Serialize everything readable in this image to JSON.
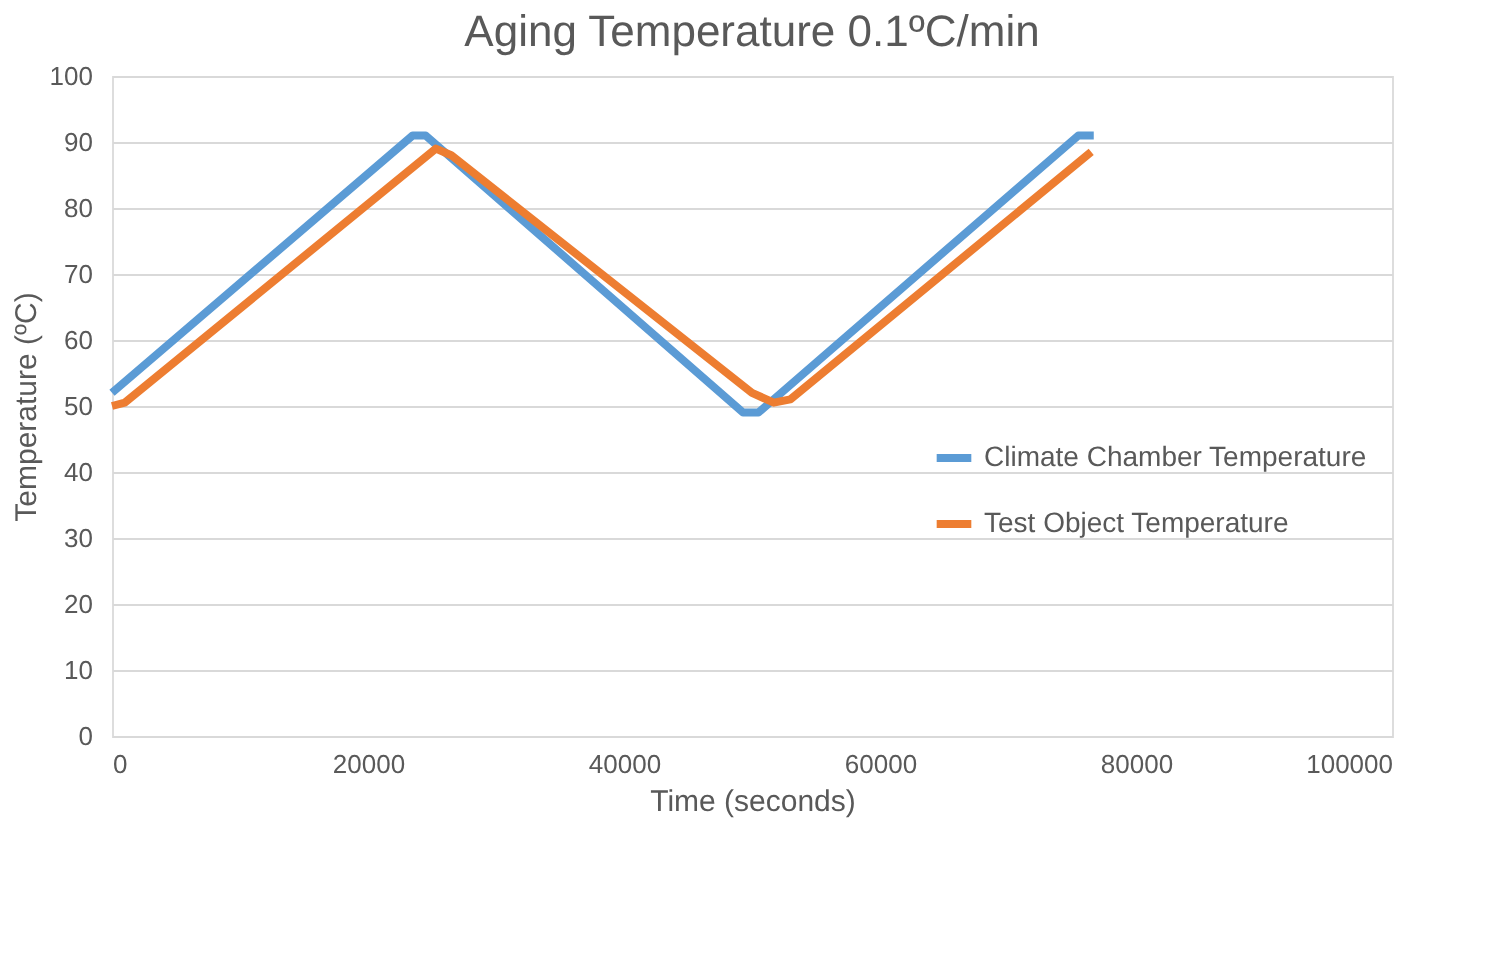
{
  "chart_data": {
    "type": "line",
    "title": "Aging Temperature 0.1ºC/min",
    "xlabel": "Time (seconds)",
    "ylabel": "Temperature (ºC)",
    "xlim": [
      0,
      100000
    ],
    "xticks": [
      0,
      20000,
      40000,
      60000,
      80000,
      100000
    ],
    "ylim": [
      0,
      100
    ],
    "yticks": [
      0,
      10,
      20,
      30,
      40,
      50,
      60,
      70,
      80,
      90,
      100
    ],
    "grid": "y",
    "legend": "right",
    "marker": "none",
    "line_style": "solid",
    "series": [
      {
        "name": "Climate Chamber Temperature",
        "color": "#5b9bd5",
        "x": [
          0,
          23500,
          24500,
          49300,
          50500,
          75500,
          76700
        ],
        "values": [
          52,
          91,
          91,
          49,
          49,
          91,
          91
        ]
      },
      {
        "name": "Test Object Temperature",
        "color": "#ed7d31",
        "x": [
          0,
          1000,
          25300,
          26500,
          50000,
          51700,
          53000,
          76500
        ],
        "values": [
          50,
          50.5,
          89,
          88,
          52,
          50.5,
          51,
          88.5
        ]
      }
    ]
  }
}
